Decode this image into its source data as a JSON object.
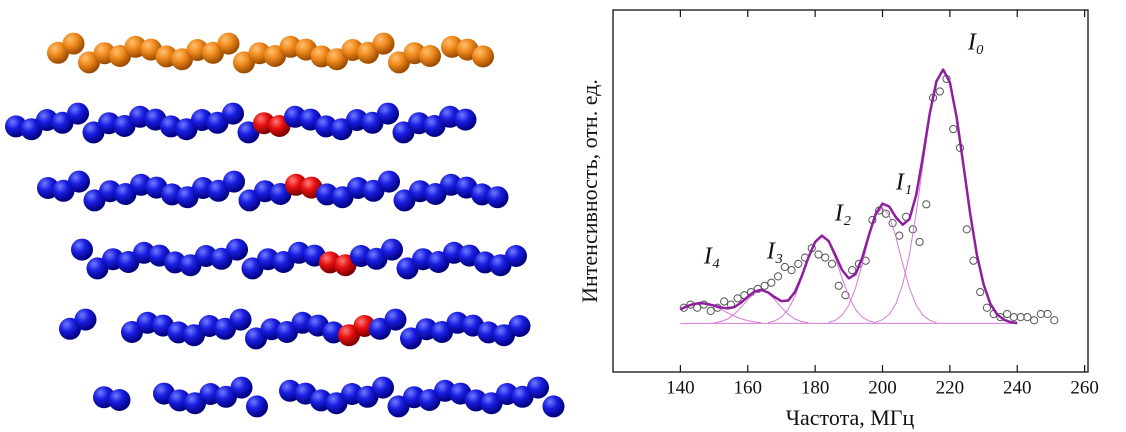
{
  "chart_data": {
    "type": "line",
    "xlabel": "Частота, МГц",
    "ylabel": "Интенсивность, отн. ед.",
    "xlim": [
      120,
      261
    ],
    "ylim": [
      -0.155,
      1.0
    ],
    "xticks": [
      140,
      160,
      180,
      200,
      220,
      240,
      260
    ],
    "annotations": [
      "I₀",
      "I₁",
      "I₂",
      "I₃",
      "I₄"
    ],
    "x": [
      140,
      142,
      144,
      146,
      148,
      150,
      152,
      154,
      156,
      158,
      160,
      162,
      164,
      166,
      168,
      170,
      172,
      174,
      176,
      178,
      180,
      182,
      184,
      186,
      188,
      190,
      192,
      194,
      196,
      198,
      200,
      202,
      204,
      206,
      208,
      210,
      212,
      214,
      216,
      218,
      220,
      222,
      224,
      226,
      228,
      230,
      232,
      234,
      236,
      238,
      240
    ],
    "series": [
      {
        "color": "#8e1f9c",
        "width": 2.5,
        "values": [
          0.045,
          0.055,
          0.062,
          0.065,
          0.062,
          0.057,
          0.051,
          0.048,
          0.052,
          0.066,
          0.085,
          0.102,
          0.107,
          0.099,
          0.084,
          0.071,
          0.073,
          0.1,
          0.15,
          0.21,
          0.26,
          0.28,
          0.263,
          0.218,
          0.17,
          0.144,
          0.157,
          0.21,
          0.283,
          0.35,
          0.382,
          0.373,
          0.338,
          0.315,
          0.333,
          0.41,
          0.533,
          0.668,
          0.772,
          0.81,
          0.769,
          0.658,
          0.507,
          0.352,
          0.22,
          0.125,
          0.063,
          0.029,
          0.012,
          0.004,
          0.001
        ]
      },
      {
        "color": "#d77ad8",
        "width": 1,
        "values": [
          0.045,
          0.055,
          0.062,
          0.065,
          0.062,
          0.055,
          0.045,
          0.034,
          0.023,
          0.015,
          0.009,
          0.005,
          0.002,
          null,
          null,
          null,
          null,
          null,
          null,
          null,
          null,
          null,
          null,
          null,
          null,
          null,
          null,
          null,
          null,
          null,
          null,
          null,
          null,
          null,
          null,
          null,
          null,
          null,
          null,
          null,
          null,
          null,
          null,
          null,
          null,
          null,
          null,
          null,
          null,
          null,
          null
        ]
      },
      {
        "color": "#d77ad8",
        "width": 1,
        "values": [
          null,
          null,
          null,
          null,
          null,
          0.002,
          0.006,
          0.014,
          0.029,
          0.051,
          0.076,
          0.097,
          0.105,
          0.097,
          0.076,
          0.051,
          0.029,
          0.014,
          0.006,
          0.002,
          null,
          null,
          null,
          null,
          null,
          null,
          null,
          null,
          null,
          null,
          null,
          null,
          null,
          null,
          null,
          null,
          null,
          null,
          null,
          null,
          null,
          null,
          null,
          null,
          null,
          null,
          null,
          null,
          null,
          null,
          null
        ]
      },
      {
        "color": "#d77ad8",
        "width": 1,
        "values": [
          null,
          null,
          null,
          null,
          null,
          null,
          null,
          null,
          null,
          null,
          null,
          null,
          null,
          0.002,
          0.008,
          0.02,
          0.044,
          0.086,
          0.144,
          0.208,
          0.26,
          0.28,
          0.26,
          0.208,
          0.144,
          0.086,
          0.044,
          0.02,
          0.008,
          0.002,
          null,
          null,
          null,
          null,
          null,
          null,
          null,
          null,
          null,
          null,
          null,
          null,
          null,
          null,
          null,
          null,
          null,
          null,
          null,
          null,
          null
        ]
      },
      {
        "color": "#d77ad8",
        "width": 1,
        "values": [
          null,
          null,
          null,
          null,
          null,
          null,
          null,
          null,
          null,
          null,
          null,
          null,
          null,
          null,
          null,
          null,
          null,
          null,
          null,
          null,
          null,
          null,
          0.003,
          0.01,
          0.026,
          0.058,
          0.113,
          0.19,
          0.275,
          0.344,
          0.37,
          0.344,
          0.275,
          0.19,
          0.113,
          0.058,
          0.026,
          0.01,
          0.003,
          null,
          null,
          null,
          null,
          null,
          null,
          null,
          null,
          null,
          null,
          null,
          null
        ]
      },
      {
        "color": "#d77ad8",
        "width": 1,
        "values": [
          null,
          null,
          null,
          null,
          null,
          null,
          null,
          null,
          null,
          null,
          null,
          null,
          null,
          null,
          null,
          null,
          null,
          null,
          null,
          null,
          null,
          null,
          null,
          null,
          null,
          null,
          null,
          null,
          null,
          0.004,
          0.012,
          0.029,
          0.063,
          0.125,
          0.22,
          0.352,
          0.507,
          0.658,
          0.769,
          0.81,
          0.769,
          0.658,
          0.507,
          0.352,
          0.22,
          0.125,
          0.063,
          0.029,
          0.012,
          0.004,
          0.001
        ]
      }
    ],
    "points": {
      "color": "#555555",
      "x": [
        141,
        143,
        145,
        147,
        149,
        151,
        153,
        155,
        157,
        159,
        161,
        163,
        165,
        167,
        169,
        171,
        173,
        175,
        177,
        179,
        181,
        183,
        185,
        187,
        189,
        191,
        193,
        195,
        197,
        199,
        201,
        203,
        205,
        207,
        209,
        211,
        213,
        215,
        217,
        219,
        221,
        223,
        225,
        227,
        229,
        231,
        233,
        235,
        237,
        239,
        241,
        243,
        245,
        247,
        249,
        251
      ],
      "values": [
        0.05,
        0.06,
        0.05,
        0.06,
        0.04,
        0.05,
        0.07,
        0.06,
        0.08,
        0.09,
        0.1,
        0.11,
        0.12,
        0.13,
        0.15,
        0.18,
        0.17,
        0.19,
        0.21,
        0.24,
        0.22,
        0.21,
        0.19,
        0.12,
        0.09,
        0.17,
        0.19,
        0.2,
        0.33,
        0.36,
        0.35,
        0.32,
        0.28,
        0.34,
        0.3,
        0.26,
        0.38,
        0.72,
        0.74,
        0.78,
        0.62,
        0.56,
        0.3,
        0.2,
        0.1,
        0.05,
        0.03,
        0.02,
        0.03,
        0.02,
        0.02,
        0.02,
        0.01,
        0.03,
        0.03,
        0.01
      ]
    }
  }
}
